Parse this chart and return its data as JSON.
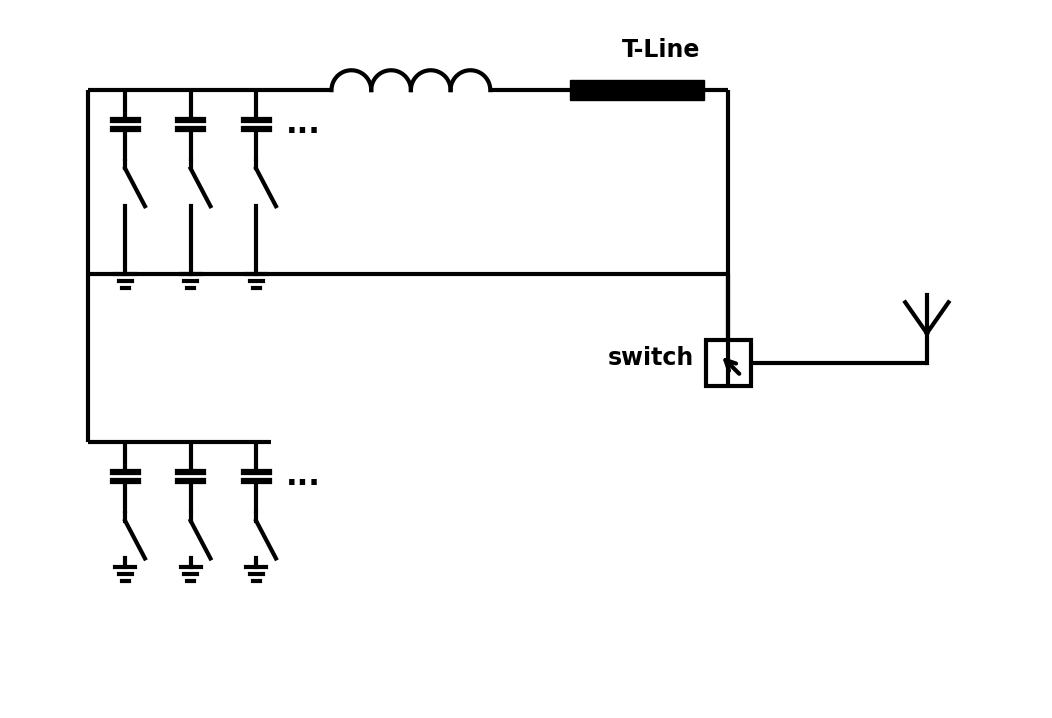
{
  "bg_color": "#ffffff",
  "line_color": "#000000",
  "line_width": 3.0,
  "fig_width": 10.52,
  "fig_height": 7.18,
  "tline_label": "T-Line",
  "switch_label": "switch"
}
